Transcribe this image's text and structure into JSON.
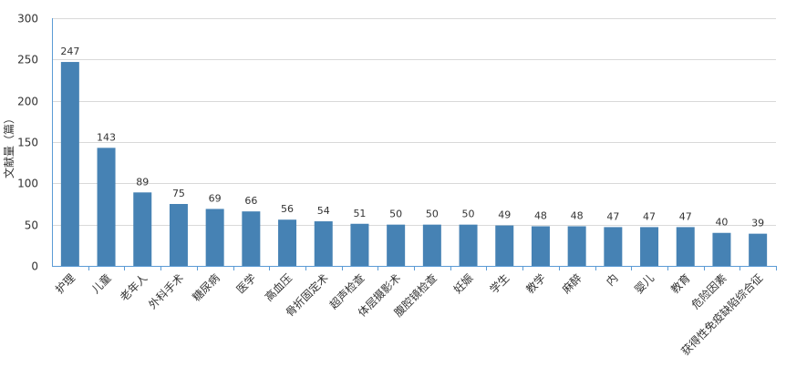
{
  "chart_data": {
    "type": "bar",
    "title": "",
    "xlabel": "",
    "ylabel": "文献量（篇）",
    "ylim": [
      0,
      300
    ],
    "yticks": [
      0,
      50,
      100,
      150,
      200,
      250,
      300
    ],
    "grid": true,
    "bar_color": "#4682b4",
    "categories": [
      "护理",
      "儿童",
      "老年人",
      "外科手术",
      "糖尿病",
      "医学",
      "高血压",
      "骨折固定术",
      "超声检查",
      "体层摄影术",
      "腹腔镜检查",
      "妊娠",
      "学生",
      "教学",
      "麻醉",
      "内",
      "婴儿",
      "教育",
      "危险因素",
      "获得性免疫缺陷综合征"
    ],
    "values": [
      247,
      143,
      89,
      75,
      69,
      66,
      56,
      54,
      51,
      50,
      50,
      50,
      49,
      48,
      48,
      47,
      47,
      47,
      40,
      39
    ]
  }
}
